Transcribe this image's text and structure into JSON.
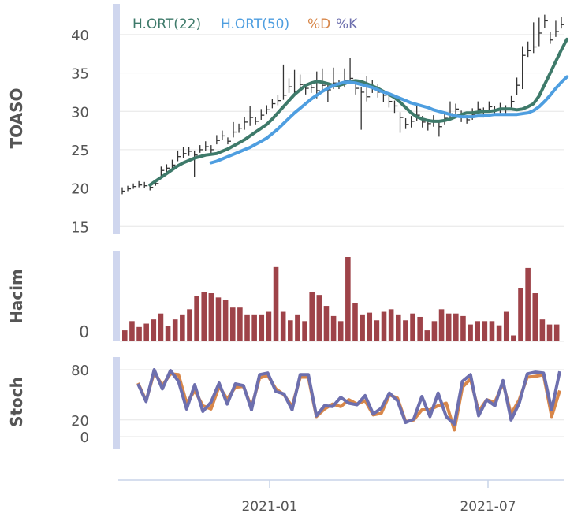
{
  "chart_data": [
    {
      "type": "ohlc",
      "ylabel": "TOASO",
      "ylim": [
        14,
        44
      ],
      "yticks": [
        15,
        20,
        25,
        30,
        35,
        40
      ],
      "grid": true,
      "legend": {
        "position": "top-left",
        "entries": [
          {
            "label": "H.ORT(22)",
            "color": "#3e7a6a"
          },
          {
            "label": "H.ORT(50)",
            "color": "#4e9ee0"
          },
          {
            "label": "%D",
            "color": "#d8874a"
          },
          {
            "label": "%K",
            "color": "#6d6fae"
          }
        ]
      },
      "close": [
        19.6,
        19.9,
        20.2,
        20.4,
        20.3,
        20.1,
        20.6,
        22.3,
        22.6,
        23.0,
        24.1,
        24.5,
        24.8,
        24.3,
        25.0,
        25.4,
        25.0,
        26.2,
        26.8,
        26.1,
        27.3,
        27.8,
        28.6,
        29.2,
        28.7,
        29.5,
        30.2,
        31.0,
        31.4,
        32.1,
        33.2,
        32.6,
        33.5,
        33.0,
        33.1,
        32.7,
        33.4,
        32.8,
        33.7,
        33.5,
        34.0,
        34.3,
        33.0,
        32.5,
        31.9,
        33.2,
        32.5,
        32.1,
        31.3,
        30.7,
        29.2,
        28.3,
        28.7,
        29.5,
        28.6,
        28.4,
        28.8,
        28.0,
        29.1,
        29.7,
        30.3,
        29.4,
        28.9,
        29.6,
        30.3,
        29.9,
        30.6,
        30.1,
        30.4,
        30.2,
        31.3,
        33.4,
        37.3,
        37.9,
        38.4,
        40.2,
        41.8,
        39.3,
        40.4,
        41.3
      ],
      "ohlc_range": [
        [
          19.2,
          20.1
        ],
        [
          19.6,
          20.3
        ],
        [
          19.9,
          20.6
        ],
        [
          20.1,
          20.9
        ],
        [
          20.0,
          20.8
        ],
        [
          19.7,
          20.6
        ],
        [
          20.3,
          21.1
        ],
        [
          21.6,
          22.8
        ],
        [
          22.1,
          23.1
        ],
        [
          22.6,
          23.7
        ],
        [
          23.5,
          24.9
        ],
        [
          23.9,
          25.3
        ],
        [
          24.2,
          25.4
        ],
        [
          21.5,
          24.9
        ],
        [
          24.6,
          25.6
        ],
        [
          24.8,
          26.1
        ],
        [
          24.5,
          25.6
        ],
        [
          25.7,
          26.9
        ],
        [
          26.3,
          27.5
        ],
        [
          25.7,
          26.6
        ],
        [
          26.6,
          28.6
        ],
        [
          27.2,
          28.4
        ],
        [
          27.6,
          29.3
        ],
        [
          28.1,
          30.7
        ],
        [
          28.3,
          29.3
        ],
        [
          28.9,
          30.3
        ],
        [
          29.6,
          30.8
        ],
        [
          30.4,
          31.6
        ],
        [
          30.8,
          32.1
        ],
        [
          31.5,
          36.1
        ],
        [
          32.4,
          34.3
        ],
        [
          32.0,
          35.4
        ],
        [
          32.5,
          34.8
        ],
        [
          32.2,
          33.6
        ],
        [
          32.4,
          33.8
        ],
        [
          31.7,
          35.2
        ],
        [
          32.6,
          35.6
        ],
        [
          31.2,
          33.5
        ],
        [
          32.9,
          35.7
        ],
        [
          32.9,
          34.1
        ],
        [
          33.1,
          35.6
        ],
        [
          33.6,
          37.0
        ],
        [
          32.2,
          33.8
        ],
        [
          27.6,
          33.2
        ],
        [
          31.3,
          34.6
        ],
        [
          32.4,
          34.1
        ],
        [
          31.8,
          33.6
        ],
        [
          31.2,
          32.8
        ],
        [
          30.5,
          32.1
        ],
        [
          29.8,
          31.4
        ],
        [
          27.2,
          29.9
        ],
        [
          27.7,
          29.1
        ],
        [
          27.9,
          29.4
        ],
        [
          28.8,
          31.0
        ],
        [
          27.9,
          29.4
        ],
        [
          27.5,
          29.0
        ],
        [
          28.0,
          29.5
        ],
        [
          26.7,
          28.7
        ],
        [
          28.3,
          29.8
        ],
        [
          29.0,
          31.3
        ],
        [
          29.6,
          31.0
        ],
        [
          28.6,
          30.1
        ],
        [
          28.4,
          29.5
        ],
        [
          28.9,
          30.4
        ],
        [
          29.7,
          31.3
        ],
        [
          29.2,
          30.5
        ],
        [
          29.9,
          31.3
        ],
        [
          29.5,
          30.7
        ],
        [
          29.8,
          31.1
        ],
        [
          29.5,
          30.8
        ],
        [
          30.5,
          32.0
        ],
        [
          32.1,
          34.4
        ],
        [
          32.9,
          38.5
        ],
        [
          37.1,
          39.1
        ],
        [
          37.6,
          41.6
        ],
        [
          38.5,
          42.2
        ],
        [
          40.9,
          42.6
        ],
        [
          38.8,
          40.3
        ],
        [
          39.7,
          41.8
        ],
        [
          40.8,
          42.3
        ]
      ],
      "sma22": {
        "start": 5,
        "values": [
          20.4,
          20.9,
          21.4,
          21.9,
          22.4,
          22.9,
          23.3,
          23.6,
          23.9,
          24.1,
          24.3,
          24.4,
          24.5,
          24.8,
          25.1,
          25.5,
          25.9,
          26.3,
          26.8,
          27.3,
          27.8,
          28.3,
          29.0,
          29.8,
          30.6,
          31.4,
          32.2,
          32.8,
          33.4,
          33.7,
          33.9,
          33.8,
          33.6,
          33.4,
          33.4,
          33.6,
          33.9,
          34.0,
          33.9,
          33.6,
          33.3,
          33.0,
          32.6,
          32.2,
          31.8,
          31.2,
          30.5,
          29.8,
          29.3,
          29.0,
          28.8,
          28.7,
          28.7,
          28.8,
          29.0,
          29.3,
          29.6,
          29.8,
          29.8,
          29.9,
          30.0,
          30.0,
          30.1,
          30.3,
          30.3,
          30.3,
          30.2,
          30.3,
          30.6,
          31.0,
          32.0,
          33.5,
          35.0,
          36.5,
          38.0,
          39.4
        ]
      },
      "sma50": {
        "start": 16,
        "values": [
          23.3,
          23.5,
          23.8,
          24.1,
          24.4,
          24.7,
          25.0,
          25.3,
          25.7,
          26.1,
          26.5,
          27.1,
          27.7,
          28.4,
          29.1,
          29.8,
          30.4,
          31.0,
          31.6,
          32.1,
          32.6,
          33.0,
          33.4,
          33.6,
          33.8,
          33.8,
          33.7,
          33.5,
          33.3,
          33.1,
          32.8,
          32.5,
          32.3,
          32.0,
          31.7,
          31.4,
          31.1,
          30.9,
          30.7,
          30.5,
          30.2,
          30.0,
          29.8,
          29.6,
          29.4,
          29.3,
          29.3,
          29.3,
          29.4,
          29.4,
          29.5,
          29.6,
          29.6,
          29.6,
          29.6,
          29.6,
          29.7,
          29.8,
          30.1,
          30.6,
          31.3,
          32.1,
          33.0,
          33.8,
          34.5
        ]
      }
    },
    {
      "type": "bar",
      "ylabel": "Hacim",
      "yticks": [
        0
      ],
      "ylim": [
        0,
        100
      ],
      "grid": true,
      "values": [
        13,
        24,
        17,
        21,
        26,
        33,
        18,
        26,
        31,
        38,
        54,
        58,
        57,
        52,
        49,
        40,
        40,
        31,
        31,
        31,
        35,
        88,
        35,
        25,
        31,
        24,
        58,
        55,
        42,
        30,
        24,
        100,
        45,
        31,
        34,
        25,
        35,
        38,
        31,
        25,
        33,
        29,
        13,
        24,
        38,
        33,
        33,
        30,
        20,
        24,
        24,
        24,
        19,
        35,
        7,
        63,
        87,
        57,
        26,
        20,
        20
      ]
    },
    {
      "type": "line",
      "ylabel": "Stoch",
      "yticks": [
        0,
        20,
        80
      ],
      "ylim": [
        -15,
        95
      ],
      "grid": true,
      "series": [
        {
          "name": "%D",
          "values": [
            64,
            43,
            77,
            61,
            75,
            74,
            40,
            55,
            37,
            33,
            60,
            45,
            59,
            60,
            35,
            70,
            73,
            57,
            50,
            36,
            71,
            71,
            24,
            33,
            39,
            36,
            44,
            39,
            43,
            26,
            28,
            50,
            46,
            18,
            20,
            32,
            32,
            37,
            40,
            8,
            59,
            69,
            30,
            44,
            41,
            64,
            27,
            44,
            71,
            72,
            74,
            24,
            55
          ]
        },
        {
          "name": "%K",
          "values": [
            63,
            42,
            80,
            57,
            79,
            66,
            33,
            62,
            30,
            41,
            64,
            39,
            63,
            61,
            32,
            74,
            76,
            54,
            51,
            32,
            74,
            74,
            25,
            37,
            36,
            47,
            40,
            38,
            49,
            27,
            34,
            52,
            43,
            17,
            21,
            48,
            24,
            52,
            24,
            15,
            66,
            74,
            25,
            44,
            37,
            67,
            20,
            40,
            75,
            77,
            76,
            32,
            78
          ]
        }
      ]
    }
  ],
  "xaxis": {
    "ticks": [
      "2021-01",
      "2021-07"
    ]
  }
}
